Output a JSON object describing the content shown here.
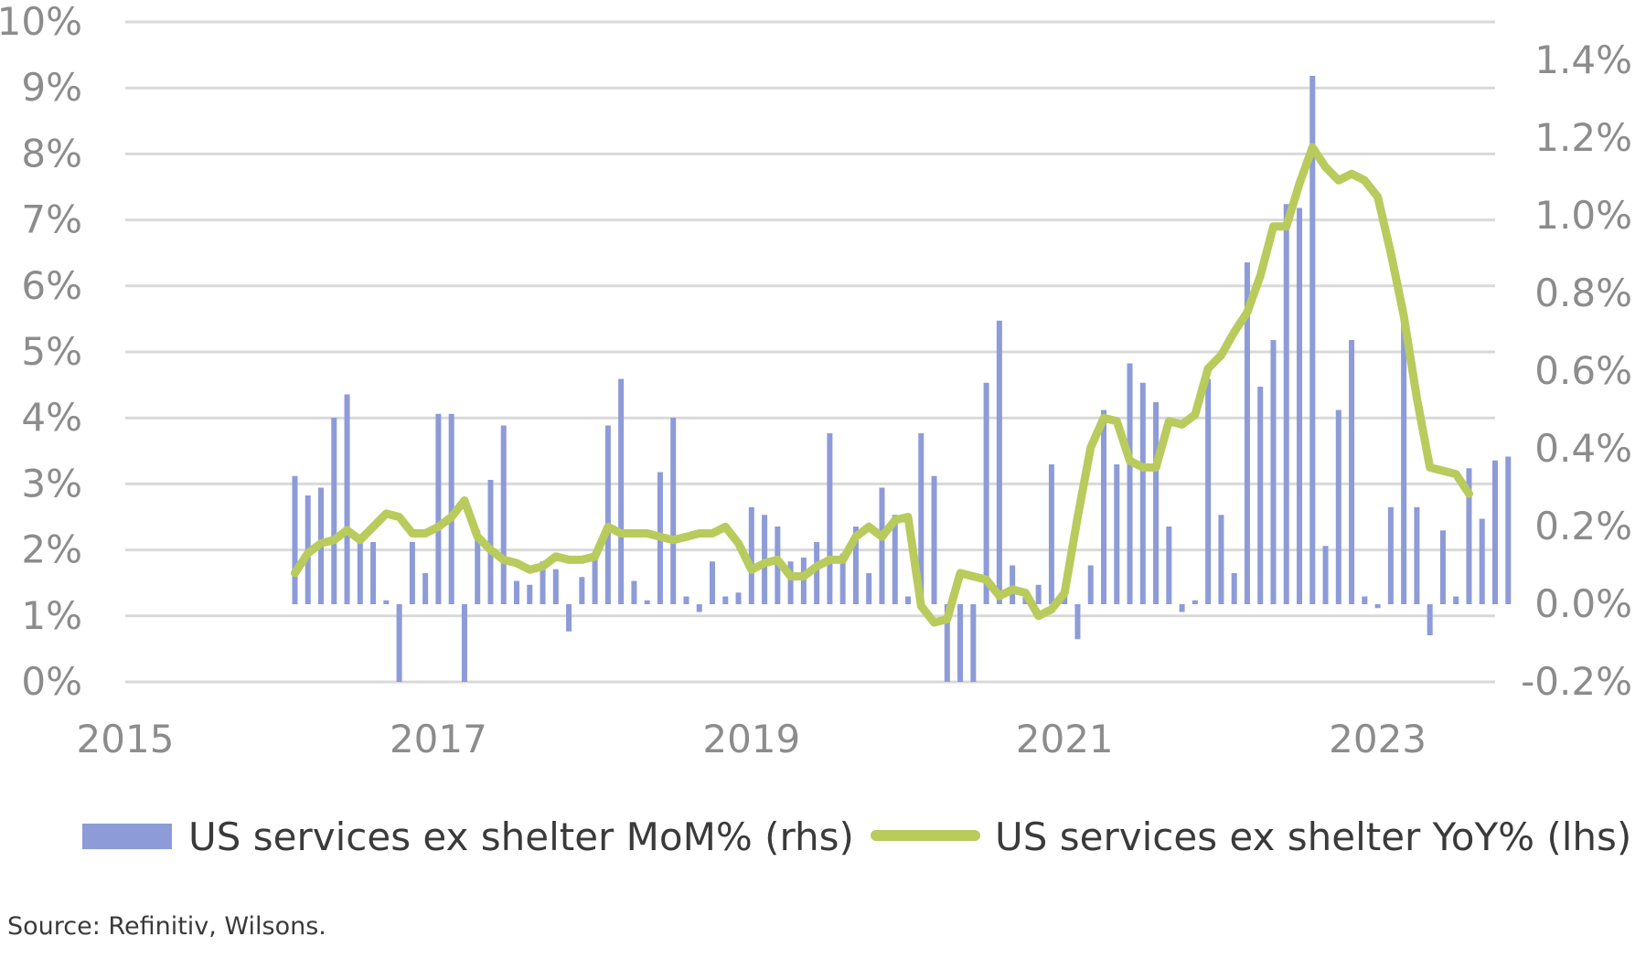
{
  "chart_data": {
    "type": "bar+line",
    "title": "",
    "x_ticks": [
      "2015",
      "2017",
      "2019",
      "2021",
      "2023"
    ],
    "x_range": [
      "2015-01",
      "2023-09"
    ],
    "y_left": {
      "label": "",
      "range": [
        0,
        10
      ],
      "ticks": [
        "0%",
        "1%",
        "2%",
        "3%",
        "4%",
        "5%",
        "6%",
        "7%",
        "8%",
        "9%",
        "10%"
      ]
    },
    "y_right": {
      "label": "",
      "range": [
        -0.2,
        1.5
      ],
      "ticks": [
        "-0.2%",
        "0.0%",
        "0.2%",
        "0.4%",
        "0.6%",
        "0.8%",
        "1.0%",
        "1.2%",
        "1.4%"
      ]
    },
    "grid": true,
    "legend_position": "bottom",
    "months_from": "2016-02",
    "series": [
      {
        "name": "US services ex shelter MoM% (rhs)",
        "kind": "bar",
        "axis": "right",
        "color": "#8d9bd8",
        "values": [
          0.33,
          0.28,
          0.3,
          0.48,
          0.54,
          0.18,
          0.16,
          0.01,
          -0.2,
          0.16,
          0.08,
          0.49,
          0.49,
          -0.2,
          0.19,
          0.32,
          0.46,
          0.06,
          0.05,
          0.11,
          0.09,
          -0.07,
          0.07,
          0.12,
          0.46,
          0.58,
          0.06,
          0.01,
          0.34,
          0.48,
          0.02,
          -0.02,
          0.11,
          0.02,
          0.03,
          0.25,
          0.23,
          0.2,
          0.11,
          0.12,
          0.16,
          0.44,
          0.13,
          0.2,
          0.08,
          0.3,
          0.23,
          0.02,
          0.44,
          0.33,
          -0.2,
          -0.2,
          -0.2,
          0.57,
          0.73,
          0.1,
          0.02,
          0.05,
          0.36,
          0.05,
          -0.09,
          0.1,
          0.5,
          0.36,
          0.62,
          0.57,
          0.52,
          0.2,
          -0.02,
          0.01,
          0.58,
          0.23,
          0.08,
          0.88,
          0.56,
          0.68,
          1.03,
          1.02,
          1.36,
          0.15,
          0.5,
          0.68,
          0.02,
          -0.01,
          0.25,
          0.74,
          0.25,
          -0.08,
          0.19,
          0.02,
          0.35,
          0.22,
          0.37,
          0.38
        ]
      },
      {
        "name": "US services ex shelter YoY% (lhs)",
        "kind": "line",
        "axis": "left",
        "color": "#b8cb5c",
        "values": [
          1.65,
          1.95,
          2.1,
          2.15,
          2.3,
          2.15,
          2.35,
          2.55,
          2.5,
          2.25,
          2.25,
          2.35,
          2.5,
          2.75,
          2.2,
          2.0,
          1.85,
          1.8,
          1.7,
          1.75,
          1.9,
          1.85,
          1.85,
          1.9,
          2.35,
          2.25,
          2.25,
          2.25,
          2.2,
          2.15,
          2.2,
          2.25,
          2.25,
          2.35,
          2.1,
          1.7,
          1.8,
          1.85,
          1.6,
          1.6,
          1.75,
          1.85,
          1.85,
          2.2,
          2.35,
          2.2,
          2.45,
          2.5,
          1.15,
          0.9,
          0.95,
          1.65,
          1.6,
          1.55,
          1.3,
          1.4,
          1.35,
          1.0,
          1.1,
          1.35,
          2.5,
          3.55,
          4.0,
          3.95,
          3.35,
          3.25,
          3.25,
          3.95,
          3.9,
          4.05,
          4.75,
          4.95,
          5.3,
          5.6,
          6.15,
          6.9,
          6.9,
          7.55,
          8.1,
          7.8,
          7.6,
          7.7,
          7.6,
          7.35,
          6.5,
          5.55,
          4.3,
          3.25,
          3.2,
          3.15,
          2.85
        ]
      }
    ],
    "source": "Source: Refinitiv, Wilsons."
  }
}
